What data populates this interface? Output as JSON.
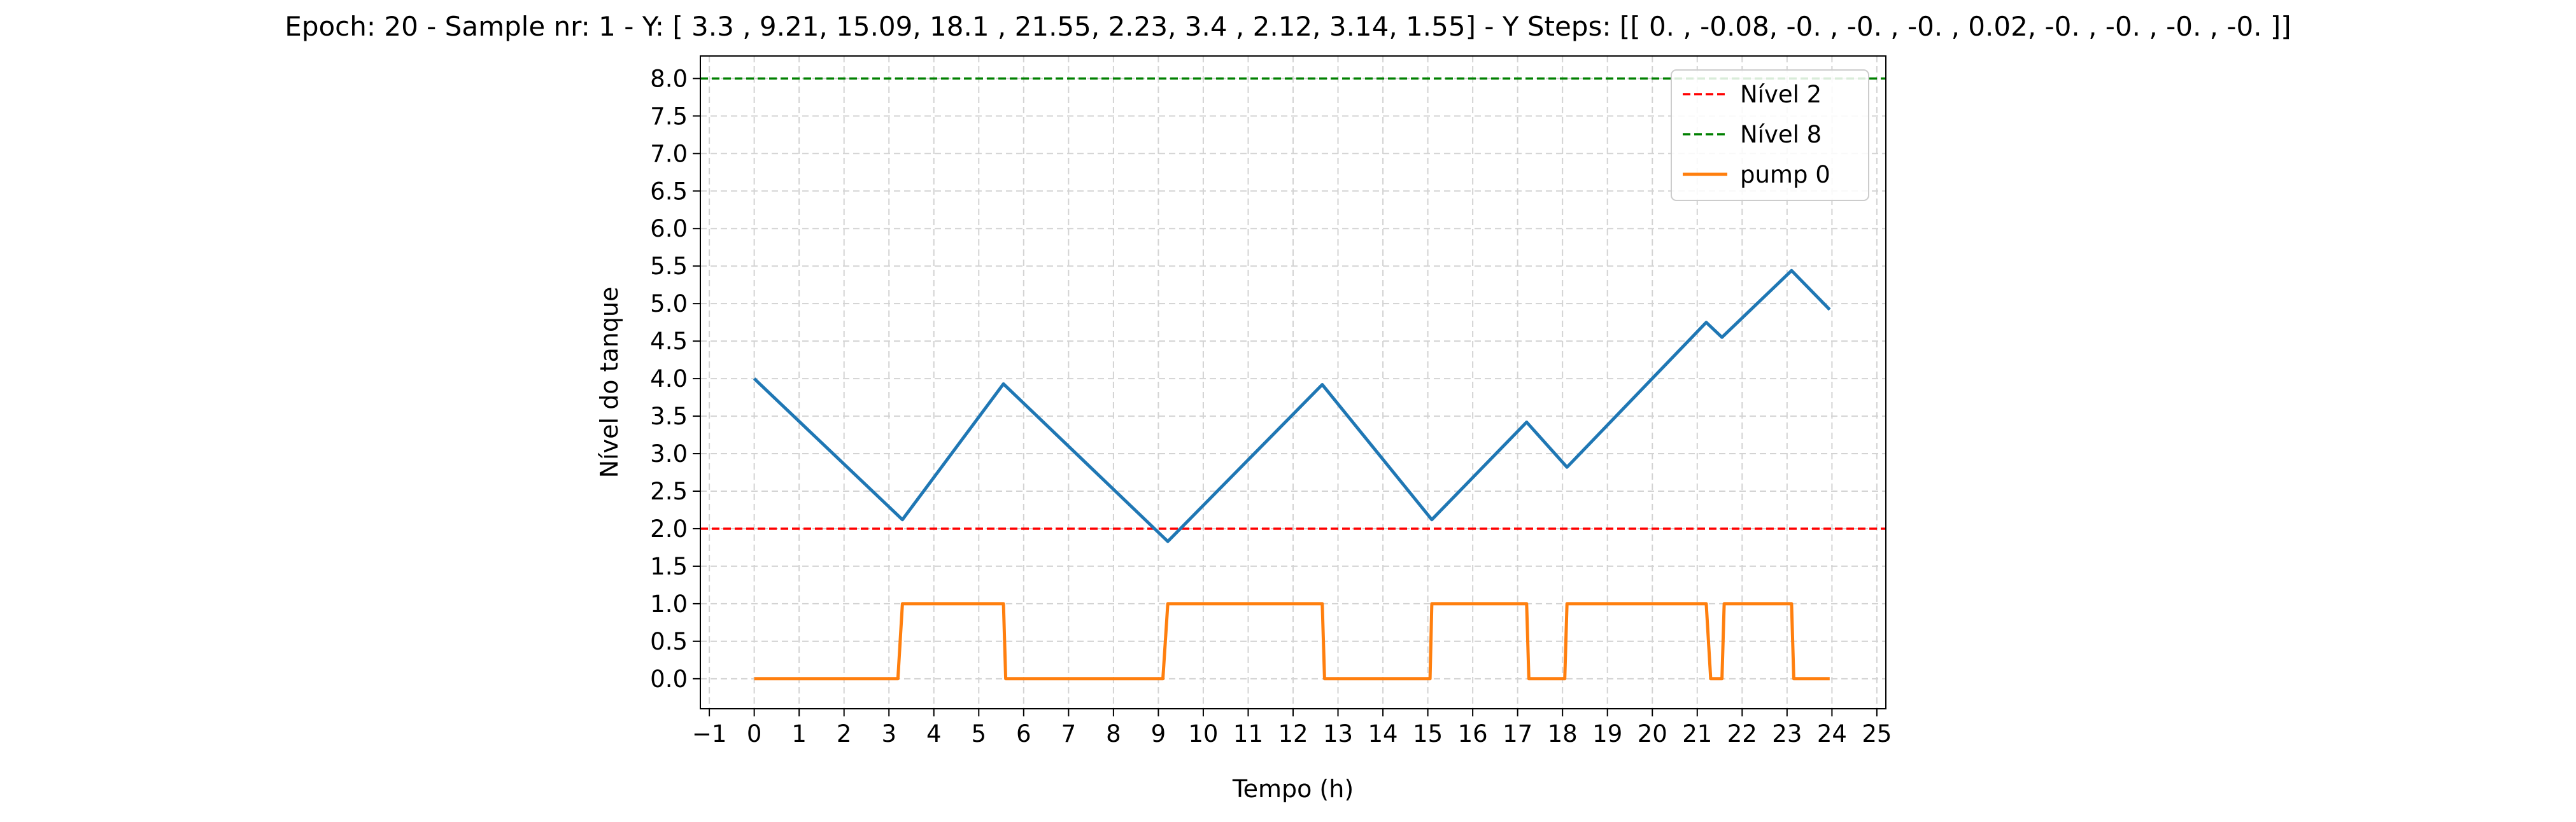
{
  "chart_data": {
    "type": "line",
    "title": "Epoch: 20 - Sample nr: 1 - Y: [ 3.3 ,  9.21, 15.09, 18.1 , 21.55,  2.23,  3.4 ,  2.12,  3.14,  1.55] - Y Steps: [[ 0.  , -0.08, -0.  , -0.  , -0.  ,  0.02, -0.  , -0.  , -0.  , -0.  ]]",
    "xlabel": "Tempo (h)",
    "ylabel": "Nível do tanque",
    "xlim": [
      -1.2,
      25.2
    ],
    "ylim": [
      -0.4,
      8.3
    ],
    "xticks": [
      -1,
      0,
      1,
      2,
      3,
      4,
      5,
      6,
      7,
      8,
      9,
      10,
      11,
      12,
      13,
      14,
      15,
      16,
      17,
      18,
      19,
      20,
      21,
      22,
      23,
      24,
      25
    ],
    "yticks": [
      0.0,
      0.5,
      1.0,
      1.5,
      2.0,
      2.5,
      3.0,
      3.5,
      4.0,
      4.5,
      5.0,
      5.5,
      6.0,
      6.5,
      7.0,
      7.5,
      8.0
    ],
    "xtick_labels": [
      "−1",
      "0",
      "1",
      "2",
      "3",
      "4",
      "5",
      "6",
      "7",
      "8",
      "9",
      "10",
      "11",
      "12",
      "13",
      "14",
      "15",
      "16",
      "17",
      "18",
      "19",
      "20",
      "21",
      "22",
      "23",
      "24",
      "25"
    ],
    "ytick_labels": [
      "0.0",
      "0.5",
      "1.0",
      "1.5",
      "2.0",
      "2.5",
      "3.0",
      "3.5",
      "4.0",
      "4.5",
      "5.0",
      "5.5",
      "6.0",
      "6.5",
      "7.0",
      "7.5",
      "8.0"
    ],
    "grid": true,
    "legend_position": "top-right",
    "hlines": [
      {
        "name": "Nível 2",
        "y": 2,
        "color": "#ff0000",
        "style": "dashed"
      },
      {
        "name": "Nível 8",
        "y": 8,
        "color": "#008000",
        "style": "dashed"
      }
    ],
    "series": [
      {
        "name": "",
        "color": "#1f77b4",
        "x": [
          0,
          3.3,
          5.55,
          9.21,
          12.65,
          15.09,
          17.2,
          18.1,
          21.2,
          21.55,
          23.1,
          23.95
        ],
        "y": [
          4.0,
          2.12,
          3.93,
          1.83,
          3.92,
          2.12,
          3.42,
          2.82,
          4.75,
          4.55,
          5.44,
          4.92
        ]
      },
      {
        "name": "pump 0",
        "color": "#ff7f0e",
        "x": [
          0,
          3.2,
          3.3,
          5.55,
          5.6,
          9.1,
          9.21,
          12.65,
          12.7,
          15.05,
          15.09,
          17.2,
          17.25,
          18.05,
          18.1,
          21.2,
          21.3,
          21.55,
          21.6,
          23.1,
          23.15,
          23.95
        ],
        "y": [
          0,
          0,
          1,
          1,
          0,
          0,
          1,
          1,
          0,
          0,
          1,
          1,
          0,
          0,
          1,
          1,
          0,
          0,
          1,
          1,
          0,
          0
        ]
      }
    ]
  }
}
